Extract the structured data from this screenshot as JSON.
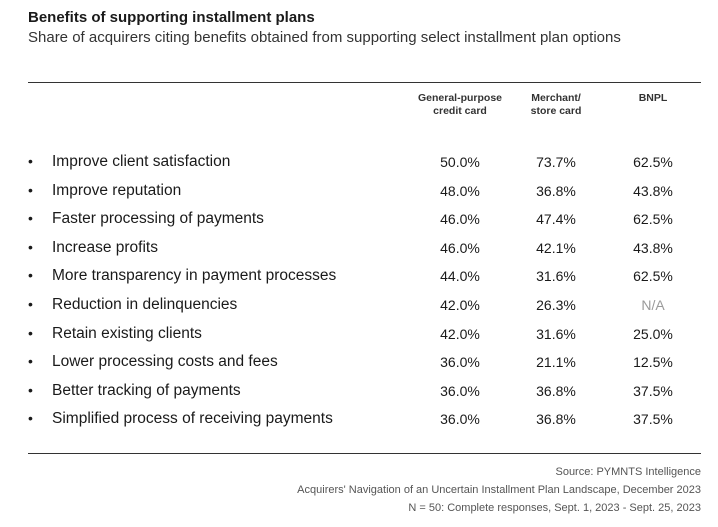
{
  "header": {
    "title": "Benefits of supporting installment plans",
    "subtitle": "Share of acquirers citing benefits obtained from supporting select installment plan options"
  },
  "chart_data": {
    "type": "table",
    "title": "Benefits of supporting installment plans",
    "subtitle": "Share of acquirers citing benefits obtained from supporting select installment plan options",
    "columns": [
      "General-purpose\ncredit card",
      "Merchant/\nstore card",
      "BNPL"
    ],
    "rows": [
      {
        "label": "Improve client satisfaction",
        "values": [
          "50.0%",
          "73.7%",
          "62.5%"
        ]
      },
      {
        "label": "Improve reputation",
        "values": [
          "48.0%",
          "36.8%",
          "43.8%"
        ]
      },
      {
        "label": "Faster processing of payments",
        "values": [
          "46.0%",
          "47.4%",
          "62.5%"
        ]
      },
      {
        "label": "Increase profits",
        "values": [
          "46.0%",
          "42.1%",
          "43.8%"
        ]
      },
      {
        "label": "More transparency in payment processes",
        "values": [
          "44.0%",
          "31.6%",
          "62.5%"
        ]
      },
      {
        "label": "Reduction in delinquencies",
        "values": [
          "42.0%",
          "26.3%",
          "N/A"
        ]
      },
      {
        "label": "Retain existing clients",
        "values": [
          "42.0%",
          "31.6%",
          "25.0%"
        ]
      },
      {
        "label": "Lower processing costs and fees",
        "values": [
          "36.0%",
          "21.1%",
          "12.5%"
        ]
      },
      {
        "label": "Better tracking of payments",
        "values": [
          "36.0%",
          "36.8%",
          "37.5%"
        ]
      },
      {
        "label": "Simplified process of receiving payments",
        "values": [
          "36.0%",
          "36.8%",
          "37.5%"
        ]
      }
    ],
    "bullet": "•"
  },
  "footer": {
    "source": "Source: PYMNTS Intelligence",
    "report": "Acquirers' Navigation of an Uncertain Installment Plan Landscape, December 2023",
    "sample": "N = 50: Complete responses, Sept. 1, 2023 - Sept. 25, 2023"
  }
}
